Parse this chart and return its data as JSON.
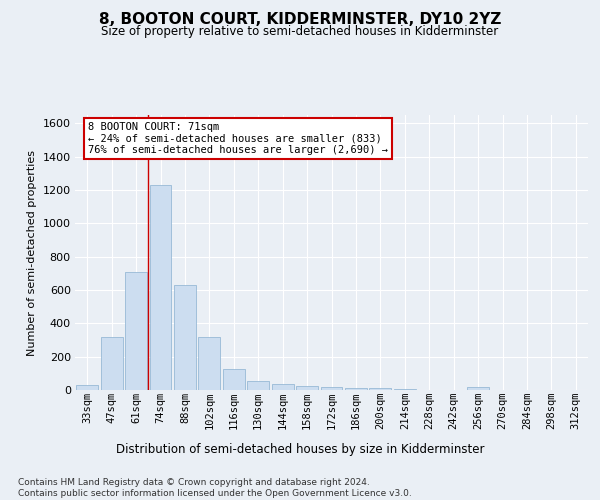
{
  "title": "8, BOOTON COURT, KIDDERMINSTER, DY10 2YZ",
  "subtitle": "Size of property relative to semi-detached houses in Kidderminster",
  "xlabel": "Distribution of semi-detached houses by size in Kidderminster",
  "ylabel": "Number of semi-detached properties",
  "categories": [
    "33sqm",
    "47sqm",
    "61sqm",
    "74sqm",
    "88sqm",
    "102sqm",
    "116sqm",
    "130sqm",
    "144sqm",
    "158sqm",
    "172sqm",
    "186sqm",
    "200sqm",
    "214sqm",
    "228sqm",
    "242sqm",
    "256sqm",
    "270sqm",
    "284sqm",
    "298sqm",
    "312sqm"
  ],
  "values": [
    28,
    320,
    710,
    1230,
    630,
    320,
    125,
    55,
    35,
    22,
    18,
    13,
    10,
    5,
    0,
    0,
    18,
    0,
    0,
    0,
    0
  ],
  "bar_color": "#ccddf0",
  "bar_edge_color": "#8ab0d0",
  "vline_color": "#cc0000",
  "vline_pos": 2.5,
  "annotation_text": "8 BOOTON COURT: 71sqm\n← 24% of semi-detached houses are smaller (833)\n76% of semi-detached houses are larger (2,690) →",
  "ylim": [
    0,
    1650
  ],
  "yticks": [
    0,
    200,
    400,
    600,
    800,
    1000,
    1200,
    1400,
    1600
  ],
  "bg_color": "#eaeff5",
  "grid_color": "#ffffff",
  "footer_line1": "Contains HM Land Registry data © Crown copyright and database right 2024.",
  "footer_line2": "Contains public sector information licensed under the Open Government Licence v3.0."
}
